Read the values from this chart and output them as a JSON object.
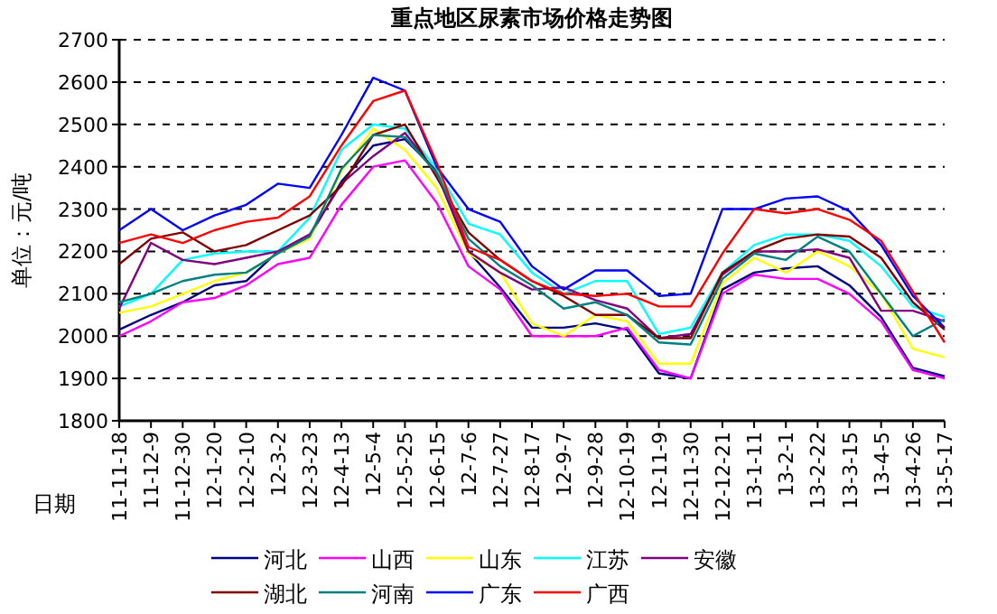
{
  "chart_data": {
    "type": "line",
    "title": "重点地区尿素市场价格走势图",
    "xlabel": "日期",
    "ylabel": "单位：元/吨",
    "categories": [
      "11-11-18",
      "11-12-9",
      "11-12-30",
      "12-1-20",
      "12-2-10",
      "12-3-2",
      "12-3-23",
      "12-4-13",
      "12-5-4",
      "12-5-25",
      "12-6-15",
      "12-7-6",
      "12-7-27",
      "12-8-17",
      "12-9-7",
      "12-9-28",
      "12-10-19",
      "12-11-9",
      "12-11-30",
      "12-12-21",
      "13-1-11",
      "13-2-1",
      "13-2-22",
      "13-3-15",
      "13-4-5",
      "13-4-26",
      "13-5-17"
    ],
    "ylim": [
      1800,
      2700
    ],
    "yticks": [
      1800,
      1900,
      2000,
      2100,
      2200,
      2300,
      2400,
      2500,
      2600,
      2700
    ],
    "grid": "y",
    "legend": "bottom",
    "series": [
      {
        "name": "河北",
        "color": "#000080",
        "values": [
          2015,
          2050,
          2080,
          2120,
          2130,
          2200,
          2235,
          2365,
          2450,
          2465,
          2390,
          2200,
          2115,
          2020,
          2020,
          2030,
          2015,
          1912,
          1900,
          2110,
          2150,
          2160,
          2165,
          2120,
          2045,
          1925,
          1905
        ]
      },
      {
        "name": "山西",
        "color": "#ff00ff",
        "values": [
          2000,
          2035,
          2080,
          2090,
          2120,
          2170,
          2185,
          2310,
          2400,
          2415,
          2315,
          2165,
          2110,
          2000,
          2000,
          2000,
          2020,
          1920,
          1900,
          2100,
          2145,
          2135,
          2135,
          2100,
          2035,
          1920,
          1900
        ]
      },
      {
        "name": "山东",
        "color": "#ffff00",
        "values": [
          2055,
          2070,
          2100,
          2130,
          2150,
          2195,
          2230,
          2390,
          2490,
          2440,
          2350,
          2195,
          2150,
          2030,
          2000,
          2050,
          2035,
          1935,
          1935,
          2125,
          2185,
          2150,
          2200,
          2165,
          2100,
          1970,
          1950
        ]
      },
      {
        "name": "江苏",
        "color": "#00ffff",
        "values": [
          2070,
          2100,
          2180,
          2195,
          2200,
          2200,
          2280,
          2440,
          2500,
          2490,
          2395,
          2265,
          2240,
          2150,
          2100,
          2130,
          2130,
          2005,
          2020,
          2150,
          2215,
          2240,
          2240,
          2225,
          2165,
          2070,
          2045
        ]
      },
      {
        "name": "安徽",
        "color": "#800080",
        "values": [
          2065,
          2220,
          2180,
          2170,
          2185,
          2200,
          2240,
          2360,
          2425,
          2480,
          2385,
          2200,
          2150,
          2110,
          2115,
          2085,
          2065,
          1995,
          2005,
          2145,
          2200,
          2200,
          2205,
          2185,
          2060,
          2060,
          2035
        ]
      },
      {
        "name": "湖北",
        "color": "#800000",
        "values": [
          2170,
          2230,
          2245,
          2200,
          2215,
          2250,
          2285,
          2355,
          2475,
          2500,
          2375,
          2245,
          2180,
          2130,
          2095,
          2050,
          2050,
          1995,
          1995,
          2150,
          2200,
          2230,
          2240,
          2235,
          2185,
          2080,
          2015
        ]
      },
      {
        "name": "河南",
        "color": "#008080",
        "values": [
          2080,
          2100,
          2130,
          2145,
          2150,
          2195,
          2235,
          2395,
          2475,
          2470,
          2385,
          2230,
          2165,
          2120,
          2065,
          2080,
          2050,
          1985,
          1980,
          2135,
          2195,
          2180,
          2235,
          2200,
          2100,
          2000,
          2040
        ]
      },
      {
        "name": "广东",
        "color": "#0000ff",
        "values": [
          2250,
          2300,
          2250,
          2285,
          2310,
          2360,
          2350,
          2475,
          2610,
          2580,
          2400,
          2300,
          2270,
          2165,
          2110,
          2155,
          2155,
          2095,
          2100,
          2300,
          2300,
          2325,
          2330,
          2295,
          2215,
          2095,
          2020
        ]
      },
      {
        "name": "广西",
        "color": "#ff0000",
        "values": [
          2220,
          2240,
          2220,
          2250,
          2270,
          2280,
          2330,
          2450,
          2555,
          2580,
          2410,
          2210,
          2180,
          2130,
          2100,
          2095,
          2100,
          2070,
          2070,
          2195,
          2300,
          2290,
          2300,
          2275,
          2225,
          2105,
          1985
        ]
      }
    ]
  }
}
